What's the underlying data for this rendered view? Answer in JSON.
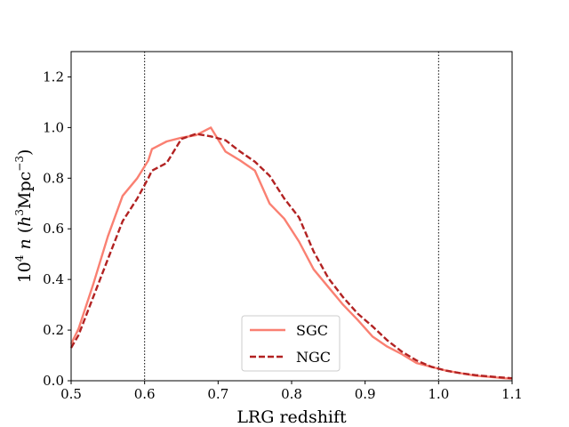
{
  "chart_data": {
    "type": "line",
    "title": "",
    "xlabel": "LRG redshift",
    "ylabel": {
      "prefix": "10",
      "prefix_sup": "4",
      "var": " n ",
      "open": "(",
      "h": "h",
      "h_sup": "3",
      "unit": "Mpc",
      "unit_sup": "−3",
      "close": ")"
    },
    "xlim": [
      0.5,
      1.1
    ],
    "ylim": [
      0.0,
      1.3
    ],
    "xticks": [
      0.5,
      0.6,
      0.7,
      0.8,
      0.9,
      1.0,
      1.1
    ],
    "xtick_labels": [
      "0.5",
      "0.6",
      "0.7",
      "0.8",
      "0.9",
      "1.0",
      "1.1"
    ],
    "yticks": [
      0.0,
      0.2,
      0.4,
      0.6,
      0.8,
      1.0,
      1.2
    ],
    "ytick_labels": [
      "0.0",
      "0.2",
      "0.4",
      "0.6",
      "0.8",
      "1.0",
      "1.2"
    ],
    "vlines": [
      0.6,
      1.0
    ],
    "grid": false,
    "legend_position": "lower-center",
    "series": [
      {
        "name": "SGC",
        "color": "#fa8072",
        "style": "solid",
        "x": [
          0.5,
          0.51,
          0.53,
          0.55,
          0.57,
          0.59,
          0.605,
          0.61,
          0.63,
          0.65,
          0.67,
          0.69,
          0.71,
          0.73,
          0.75,
          0.77,
          0.79,
          0.81,
          0.83,
          0.85,
          0.87,
          0.89,
          0.91,
          0.93,
          0.95,
          0.97,
          0.99,
          1.01,
          1.03,
          1.05,
          1.07,
          1.09,
          1.1
        ],
        "y": [
          0.145,
          0.205,
          0.38,
          0.57,
          0.73,
          0.8,
          0.87,
          0.915,
          0.945,
          0.96,
          0.97,
          1.0,
          0.905,
          0.87,
          0.83,
          0.7,
          0.64,
          0.55,
          0.44,
          0.37,
          0.3,
          0.24,
          0.175,
          0.135,
          0.105,
          0.07,
          0.055,
          0.04,
          0.03,
          0.02,
          0.015,
          0.01,
          0.008
        ]
      },
      {
        "name": "NGC",
        "color": "#b22222",
        "style": "dashed",
        "x": [
          0.5,
          0.51,
          0.53,
          0.55,
          0.57,
          0.59,
          0.605,
          0.61,
          0.63,
          0.65,
          0.67,
          0.69,
          0.71,
          0.73,
          0.75,
          0.77,
          0.79,
          0.81,
          0.83,
          0.85,
          0.87,
          0.89,
          0.91,
          0.93,
          0.95,
          0.97,
          0.99,
          1.01,
          1.03,
          1.05,
          1.07,
          1.09,
          1.1
        ],
        "y": [
          0.13,
          0.18,
          0.33,
          0.48,
          0.63,
          0.72,
          0.8,
          0.83,
          0.86,
          0.955,
          0.975,
          0.965,
          0.95,
          0.905,
          0.865,
          0.81,
          0.72,
          0.645,
          0.51,
          0.405,
          0.33,
          0.265,
          0.215,
          0.16,
          0.115,
          0.08,
          0.055,
          0.04,
          0.03,
          0.022,
          0.017,
          0.012,
          0.01
        ]
      }
    ]
  }
}
